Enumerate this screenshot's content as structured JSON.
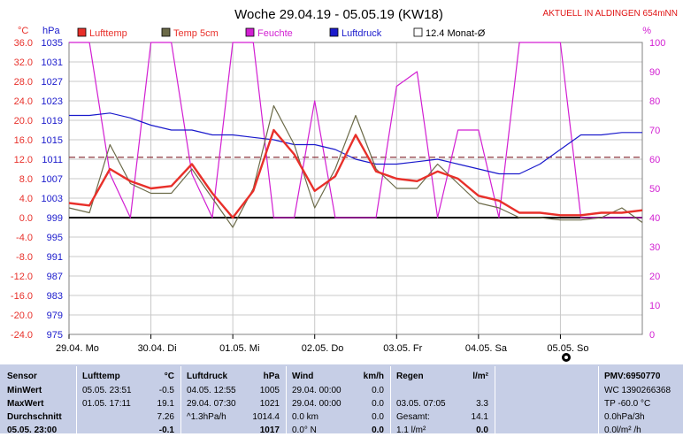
{
  "chart_data": {
    "type": "line",
    "title": "Woche 29.04.19 - 05.05.19 (KW18)",
    "station_note": "AKTUELL IN ALDINGEN 654mNN",
    "left_unit_temp": "°C",
    "left_unit_pressure": "hPa",
    "right_unit": "%",
    "temp_ticks": [
      "36.0",
      "32.0",
      "28.0",
      "24.0",
      "20.0",
      "16.0",
      "12.0",
      "8.0",
      "4.0",
      "0.0",
      "-4.0",
      "-8.0",
      "-12.0",
      "-16.0",
      "-20.0",
      "-24.0"
    ],
    "pressure_ticks": [
      "1035",
      "1031",
      "1027",
      "1023",
      "1019",
      "1015",
      "1011",
      "1007",
      "1003",
      "999",
      "995",
      "991",
      "987",
      "983",
      "979",
      "975"
    ],
    "humidity_ticks": [
      "100",
      "90",
      "80",
      "70",
      "60",
      "50",
      "40",
      "30",
      "20",
      "10",
      "0"
    ],
    "ylim_temp": [
      -24,
      36
    ],
    "ylim_pressure": [
      975,
      1035
    ],
    "ylim_humidity": [
      0,
      100
    ],
    "day_labels": [
      "29.04. Mo",
      "30.04. Di",
      "01.05. Mi",
      "02.05. Do",
      "03.05. Fr",
      "04.05. Sa",
      "05.05. So"
    ],
    "hours": [
      0,
      6,
      12,
      18,
      24,
      30,
      36,
      42,
      48,
      54,
      60,
      66,
      72,
      78,
      84,
      90,
      96,
      102,
      108,
      114,
      120,
      126,
      132,
      138,
      144,
      150,
      156,
      162,
      168
    ],
    "legend": [
      {
        "name": "Lufttemp",
        "color": "#e8302a"
      },
      {
        "name": "Temp 5cm",
        "color": "#6b6a48"
      },
      {
        "name": "Feuchte",
        "color": "#d21fd2"
      },
      {
        "name": "Luftdruck",
        "color": "#1a1acc"
      },
      {
        "name": "12.4 Monat-Ø",
        "color": "#80202a"
      }
    ],
    "reference_temp": 12.4,
    "series": [
      {
        "name": "Lufttemp",
        "axis": "temp",
        "color": "#e8302a",
        "values": [
          3,
          2.5,
          10,
          7.5,
          6,
          6.5,
          11,
          5,
          0,
          5.5,
          18,
          13,
          5.5,
          8.5,
          17,
          9.5,
          8,
          7.5,
          9.5,
          8,
          4.5,
          3.5,
          1,
          1,
          0.5,
          0.5,
          1,
          1,
          1.5
        ]
      },
      {
        "name": "Temp 5cm",
        "axis": "temp",
        "color": "#6b6a48",
        "values": [
          2,
          1,
          15,
          7,
          5,
          5,
          10,
          4,
          -2,
          6,
          23,
          15,
          2,
          10,
          21,
          10,
          6,
          6,
          11,
          7,
          3,
          2,
          0,
          0,
          -0.5,
          -0.5,
          0,
          2,
          -1
        ]
      },
      {
        "name": "Feuchte",
        "axis": "humidity",
        "color": "#d21fd2",
        "values": [
          100,
          100,
          55,
          40,
          100,
          100,
          55,
          40,
          100,
          100,
          40,
          40,
          80,
          40,
          40,
          40,
          85,
          90,
          40,
          70,
          70,
          40,
          100,
          100,
          100,
          40,
          40,
          40,
          40
        ]
      },
      {
        "name": "Luftdruck",
        "axis": "pressure",
        "color": "#1a1acc",
        "values": [
          1020,
          1020,
          1020.5,
          1019.5,
          1018,
          1017,
          1017,
          1016,
          1016,
          1015.5,
          1015,
          1014,
          1014,
          1013,
          1011,
          1010,
          1010,
          1010.5,
          1011,
          1010,
          1009,
          1008,
          1008,
          1010,
          1013,
          1016,
          1016,
          1016.5,
          1016.5
        ]
      }
    ]
  },
  "stats": {
    "headers": {
      "sensor": "Sensor",
      "lufttemp": "Lufttemp",
      "lufttemp_unit": "°C",
      "luftdruck": "Luftdruck",
      "luftdruck_unit": "hPa",
      "wind": "Wind",
      "wind_unit": "km/h",
      "regen": "Regen",
      "regen_unit": "l/m²",
      "pmv": "PMV:6950770"
    },
    "row_labels": {
      "min": "MinWert",
      "max": "MaxWert",
      "avg": "Durchschnitt",
      "cur": "05.05. 23:00"
    },
    "lufttemp": {
      "min_time": "05.05.  23:51",
      "min_val": "-0.5",
      "max_time": "01.05.  17:11",
      "max_val": "19.1",
      "avg_val": "7.26",
      "cur_val": "-0.1"
    },
    "luftdruck": {
      "min_time": "04.05.  12:55",
      "min_val": "1005",
      "max_time": "29.04.  07:30",
      "max_val": "1021",
      "trend": "^1.3hPa/h",
      "avg_val": "1014.4",
      "cur_val": "1017"
    },
    "wind": {
      "min_time": "29.04.  00:00",
      "min_val": "0.0",
      "max_time": "29.04.  00:00",
      "max_val": "0.0",
      "avg_label": "0.0 km",
      "avg_val": "0.0",
      "cur_label": "0.0° N",
      "cur_val": "0.0"
    },
    "regen": {
      "max_time": "03.05.  07:05",
      "max_val": "3.3",
      "total_label": "Gesamt:",
      "total_val": "14.1",
      "cur_label": "1.1 l/m²",
      "cur_val": "0.0"
    },
    "pmv": {
      "line1": "WC 1390266368",
      "line2": "TP -60.0 °C",
      "line3": "0.0hPa/3h",
      "line4": "0.0l/m² /h"
    }
  }
}
